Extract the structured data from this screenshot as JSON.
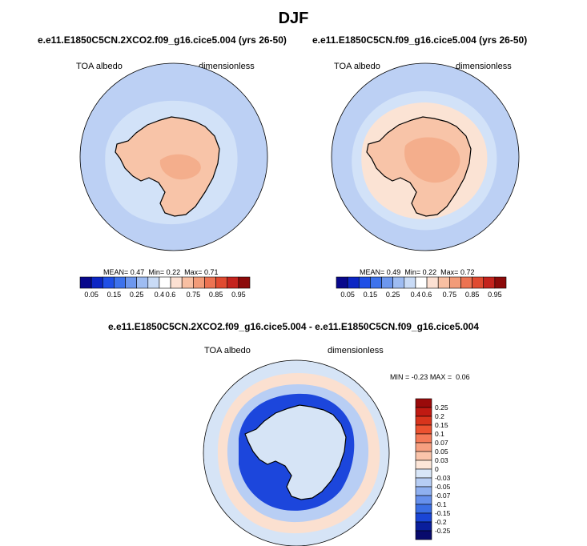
{
  "figure_title": "DJF",
  "chart_data": [
    {
      "type": "heatmap",
      "projection": "south polar stereographic",
      "title": "e.e11.E1850C5CN.2XCO2.f09_g16.cice5.004 (yrs 26-50)",
      "left_label": "TOA albedo",
      "right_label": "dimensionless",
      "stats": {
        "mean_label": "MEAN=",
        "mean": "0.47",
        "min_label": "Min=",
        "min": "0.22",
        "max_label": "Max=",
        "max": "0.71"
      },
      "colorbar_ticks": [
        "0.05",
        "0.15",
        "0.25",
        "0.4",
        "0.6",
        "0.75",
        "0.85",
        "0.95"
      ],
      "colorbar_colors": [
        "#08088c",
        "#0c26c4",
        "#1f4fe6",
        "#3d72ec",
        "#6d97ee",
        "#9ebcf2",
        "#c9dbf6",
        "#ffffff",
        "#fce0d2",
        "#f8bfa2",
        "#f29b78",
        "#ec7352",
        "#e04a30",
        "#c4231d",
        "#8c0a0a"
      ],
      "field": {
        "ocean": "#bcd0f4",
        "sea_ice_ring": "#d2e2f8",
        "continent": "#f8c4a8",
        "interior_patch": "#f4ae8c"
      }
    },
    {
      "type": "heatmap",
      "projection": "south polar stereographic",
      "title": "e.e11.E1850C5CN.f09_g16.cice5.004 (yrs 26-50)",
      "left_label": "TOA albedo",
      "right_label": "dimensionless",
      "stats": {
        "mean_label": "MEAN=",
        "mean": "0.49",
        "min_label": "Min=",
        "min": "0.22",
        "max_label": "Max=",
        "max": "0.72"
      },
      "colorbar_ticks": [
        "0.05",
        "0.15",
        "0.25",
        "0.4",
        "0.6",
        "0.75",
        "0.85",
        "0.95"
      ],
      "colorbar_colors": [
        "#08088c",
        "#0c26c4",
        "#1f4fe6",
        "#3d72ec",
        "#6d97ee",
        "#9ebcf2",
        "#c9dbf6",
        "#ffffff",
        "#fce0d2",
        "#f8bfa2",
        "#f29b78",
        "#ec7352",
        "#e04a30",
        "#c4231d",
        "#8c0a0a"
      ],
      "field": {
        "ocean": "#bcd0f4",
        "sea_ice_ring": "#d2e2f8",
        "outer_ice": "#fbe3d4",
        "continent": "#f8c4a8",
        "interior_patch": "#f4ae8c"
      }
    },
    {
      "type": "heatmap",
      "projection": "south polar stereographic",
      "title": "e.e11.E1850C5CN.2XCO2.f09_g16.cice5.004 - e.e11.E1850C5CN.f09_g16.cice5.004",
      "left_label": "TOA albedo",
      "right_label": "dimensionless",
      "stats": {
        "min_label": "MIN =",
        "min": "-0.23",
        "max_label": "MAX =",
        "max": "0.06"
      },
      "colorbar_ticks": [
        "0.25",
        "0.2",
        "0.15",
        "0.1",
        "0.07",
        "0.05",
        "0.03",
        "0",
        "-0.03",
        "-0.05",
        "-0.07",
        "-0.1",
        "-0.15",
        "-0.2",
        "-0.25"
      ],
      "colorbar_colors": [
        "#9a0a0a",
        "#c01a12",
        "#d8341c",
        "#ec5230",
        "#f47a58",
        "#f7a080",
        "#fac4aa",
        "#fde6d8",
        "#d8e6f8",
        "#b6cdf4",
        "#8fb0f0",
        "#6690ec",
        "#3b6ee4",
        "#1a45d6",
        "#0a1e9c",
        "#080a6c"
      ],
      "field": {
        "background": "#d6e4f6",
        "warm_ring": "#fbe0d0",
        "cool_belt": "#b8cef4",
        "deep_blue": "#1c46dc",
        "continent": "#d6e4f6"
      }
    }
  ]
}
